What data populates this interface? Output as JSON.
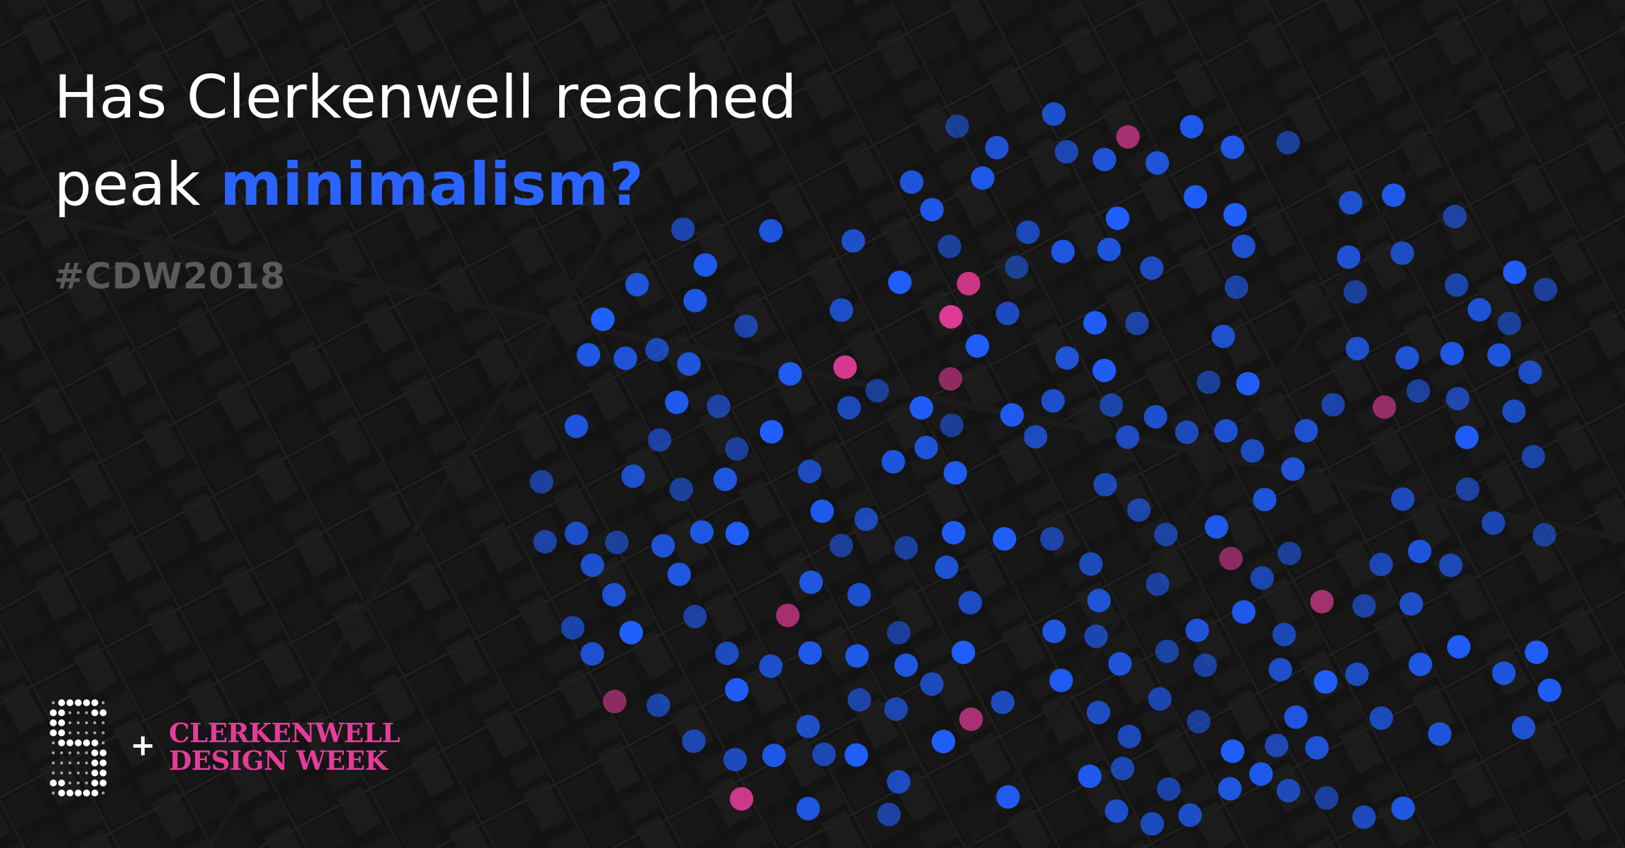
{
  "headline": {
    "line1": "Has Clerkenwell reached",
    "line2_prefix": "peak ",
    "line2_accent": "minimalism?"
  },
  "hashtag": "#CDW2018",
  "logo": {
    "mark_icon": "dotted-s-logo-icon",
    "plus": "+",
    "brand_line1": "CLERKENWELL",
    "brand_line2": "DESIGN WEEK"
  },
  "colors": {
    "background": "#161616",
    "headline": "#ffffff",
    "accent": "#2a63ff",
    "hashtag": "#5a5a5a",
    "dot_blue": "#2060ff",
    "dot_pink": "#e63c99",
    "brand": "#e63c99"
  },
  "dot_counts": {
    "blue": 205,
    "pink": 12
  }
}
